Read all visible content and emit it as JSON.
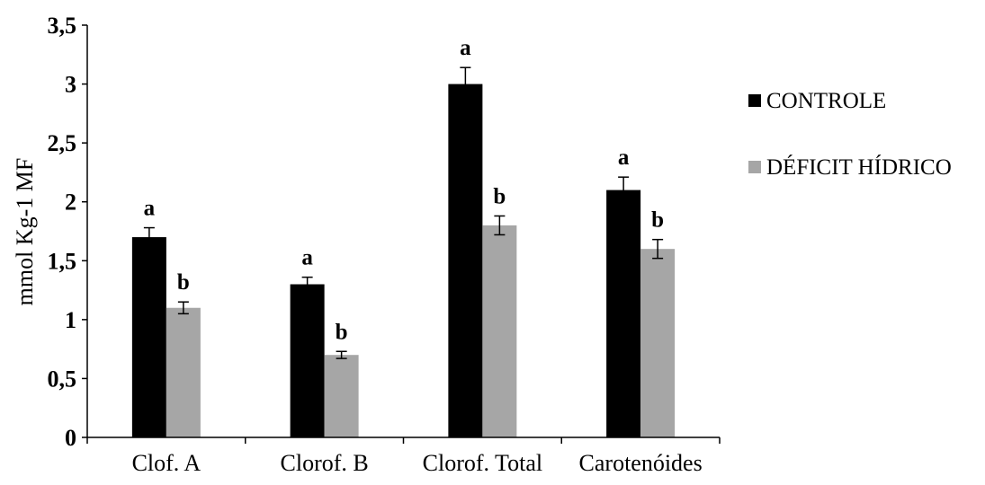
{
  "chart_data": {
    "type": "bar",
    "ylabel": "mmol Kg-1 MF",
    "xlabel": "",
    "ylim": [
      0,
      3.5
    ],
    "yticks": [
      {
        "value": 0,
        "label": "0"
      },
      {
        "value": 0.5,
        "label": "0,5"
      },
      {
        "value": 1,
        "label": "1"
      },
      {
        "value": 1.5,
        "label": "1,5"
      },
      {
        "value": 2,
        "label": "2"
      },
      {
        "value": 2.5,
        "label": "2,5"
      },
      {
        "value": 3,
        "label": "3"
      },
      {
        "value": 3.5,
        "label": "3,5"
      }
    ],
    "categories": [
      "Clof. A",
      "Clorof. B",
      "Clorof. Total",
      "Carotenóides"
    ],
    "series": [
      {
        "name": "CONTROLE",
        "color": "#000000",
        "values": [
          1.7,
          1.3,
          3.0,
          2.1
        ],
        "errors": [
          0.08,
          0.06,
          0.14,
          0.11
        ],
        "letters": [
          "a",
          "a",
          "a",
          "a"
        ]
      },
      {
        "name": "DÉFICIT HÍDRICO",
        "color": "#a6a6a6",
        "values": [
          1.1,
          0.7,
          1.8,
          1.6
        ],
        "errors": [
          0.05,
          0.03,
          0.08,
          0.08
        ],
        "letters": [
          "b",
          "b",
          "b",
          "b"
        ]
      }
    ],
    "grid": false,
    "legend_position": "right"
  }
}
